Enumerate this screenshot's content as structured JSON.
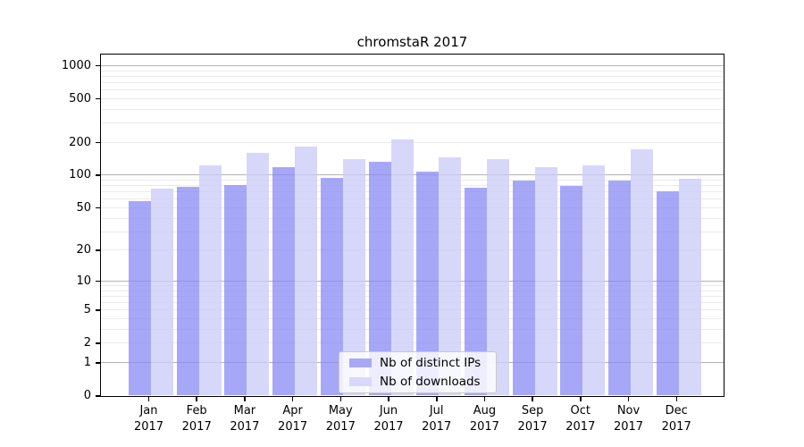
{
  "title": "chromstaR 2017",
  "year_label": "2017",
  "legend": {
    "items": [
      {
        "label": "Nb of distinct IPs"
      },
      {
        "label": "Nb of downloads"
      }
    ]
  },
  "chart_data": {
    "type": "bar",
    "title": "chromstaR 2017",
    "categories": [
      "Jan",
      "Feb",
      "Mar",
      "Apr",
      "May",
      "Jun",
      "Jul",
      "Aug",
      "Sep",
      "Oct",
      "Nov",
      "Dec"
    ],
    "category_year": "2017",
    "series": [
      {
        "name": "Nb of distinct IPs",
        "color": "#a8a8f8",
        "color_rgba": "rgba(138,138,246,0.75)",
        "values": [
          57,
          77,
          80,
          118,
          93,
          131,
          107,
          76,
          89,
          79,
          88,
          70
        ]
      },
      {
        "name": "Nb of downloads",
        "color": "#d8d8f9",
        "color_rgba": "rgba(204,204,248,0.78)",
        "values": [
          74,
          121,
          160,
          180,
          138,
          209,
          144,
          138,
          117,
          121,
          170,
          91
        ]
      }
    ],
    "y_ticks": [
      0,
      1,
      2,
      5,
      10,
      20,
      50,
      100,
      200,
      500,
      1000
    ],
    "major_grid_values": [
      1,
      10,
      100,
      1000
    ],
    "ylim": [
      0,
      1250
    ],
    "scale": "log10(value+1)",
    "grid": "major+minor horizontal",
    "legend_position": "bottom-center",
    "colors": {
      "major_grid": "#b3b3b3",
      "minor_grid": "#ebebeb",
      "axis": "#000000",
      "background": "#ffffff"
    }
  }
}
